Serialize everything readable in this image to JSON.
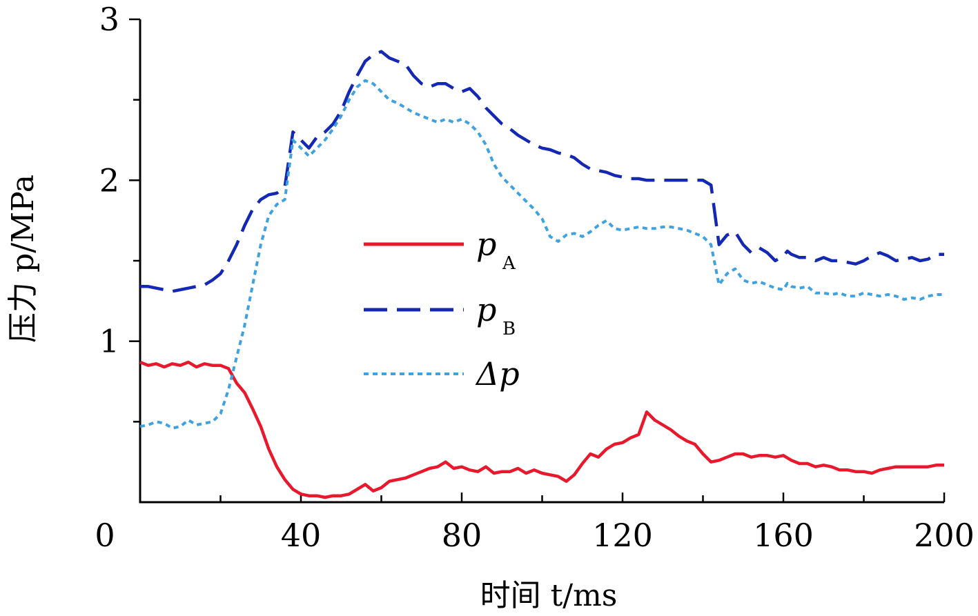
{
  "chart_data": {
    "type": "line",
    "xlabel": "时间 t/ms",
    "ylabel": "压力 p/MPa",
    "xlim": [
      0,
      200
    ],
    "ylim": [
      0,
      3
    ],
    "xticks": [
      0,
      40,
      80,
      120,
      160,
      200
    ],
    "yticks": [
      1,
      2,
      3
    ],
    "grid": false,
    "legend_position": "center",
    "series": [
      {
        "name": "pA",
        "legend_main": "p",
        "legend_sub": "A",
        "color": "#e8192c",
        "style": "solid",
        "x": [
          0,
          2,
          4,
          6,
          8,
          10,
          12,
          14,
          16,
          18,
          20,
          22,
          24,
          26,
          28,
          30,
          32,
          34,
          36,
          38,
          40,
          42,
          44,
          46,
          48,
          50,
          52,
          54,
          56,
          58,
          60,
          62,
          64,
          66,
          68,
          70,
          72,
          74,
          76,
          78,
          80,
          82,
          84,
          86,
          88,
          90,
          92,
          94,
          96,
          98,
          100,
          102,
          104,
          106,
          108,
          110,
          112,
          114,
          116,
          118,
          120,
          122,
          124,
          126,
          128,
          130,
          132,
          134,
          136,
          138,
          140,
          142,
          144,
          146,
          148,
          150,
          152,
          154,
          156,
          158,
          160,
          162,
          164,
          166,
          168,
          170,
          172,
          174,
          176,
          178,
          180,
          182,
          184,
          186,
          188,
          190,
          192,
          194,
          196,
          198,
          200
        ],
        "y": [
          0.87,
          0.85,
          0.86,
          0.84,
          0.86,
          0.85,
          0.87,
          0.84,
          0.86,
          0.85,
          0.85,
          0.83,
          0.74,
          0.68,
          0.58,
          0.47,
          0.33,
          0.22,
          0.14,
          0.08,
          0.05,
          0.04,
          0.04,
          0.03,
          0.04,
          0.04,
          0.05,
          0.08,
          0.11,
          0.07,
          0.09,
          0.13,
          0.14,
          0.15,
          0.17,
          0.19,
          0.21,
          0.22,
          0.25,
          0.21,
          0.22,
          0.2,
          0.19,
          0.22,
          0.18,
          0.19,
          0.19,
          0.21,
          0.18,
          0.2,
          0.18,
          0.17,
          0.16,
          0.13,
          0.17,
          0.24,
          0.3,
          0.28,
          0.33,
          0.36,
          0.37,
          0.4,
          0.42,
          0.56,
          0.51,
          0.48,
          0.45,
          0.41,
          0.38,
          0.36,
          0.3,
          0.25,
          0.26,
          0.28,
          0.3,
          0.3,
          0.28,
          0.29,
          0.29,
          0.28,
          0.29,
          0.26,
          0.24,
          0.24,
          0.22,
          0.23,
          0.22,
          0.2,
          0.2,
          0.19,
          0.19,
          0.18,
          0.2,
          0.21,
          0.22,
          0.22,
          0.22,
          0.22,
          0.22,
          0.23,
          0.23
        ]
      },
      {
        "name": "pB",
        "legend_main": "p",
        "legend_sub": "B",
        "color": "#1428b4",
        "style": "dashed",
        "x": [
          0,
          2,
          4,
          6,
          8,
          10,
          12,
          14,
          16,
          18,
          20,
          22,
          24,
          26,
          28,
          30,
          32,
          34,
          36,
          38,
          40,
          42,
          44,
          46,
          48,
          50,
          52,
          54,
          56,
          58,
          60,
          62,
          64,
          66,
          68,
          70,
          72,
          74,
          76,
          78,
          80,
          82,
          84,
          86,
          88,
          90,
          92,
          94,
          96,
          98,
          100,
          102,
          104,
          106,
          108,
          110,
          112,
          114,
          116,
          118,
          120,
          122,
          124,
          126,
          128,
          130,
          132,
          134,
          136,
          138,
          140,
          142,
          144,
          146,
          148,
          150,
          152,
          154,
          156,
          158,
          160,
          161,
          162,
          164,
          166,
          168,
          170,
          172,
          174,
          176,
          178,
          180,
          182,
          184,
          186,
          188,
          190,
          192,
          194,
          196,
          198,
          200
        ],
        "y": [
          1.34,
          1.34,
          1.33,
          1.32,
          1.31,
          1.32,
          1.33,
          1.34,
          1.35,
          1.38,
          1.42,
          1.5,
          1.6,
          1.72,
          1.82,
          1.88,
          1.91,
          1.92,
          1.96,
          2.3,
          2.25,
          2.2,
          2.27,
          2.3,
          2.35,
          2.43,
          2.55,
          2.65,
          2.74,
          2.78,
          2.8,
          2.76,
          2.74,
          2.72,
          2.65,
          2.6,
          2.58,
          2.6,
          2.6,
          2.57,
          2.55,
          2.57,
          2.52,
          2.45,
          2.4,
          2.35,
          2.32,
          2.28,
          2.25,
          2.22,
          2.2,
          2.19,
          2.17,
          2.16,
          2.14,
          2.1,
          2.07,
          2.06,
          2.05,
          2.03,
          2.02,
          2.01,
          2.01,
          2.0,
          2.0,
          2.0,
          2.0,
          2.0,
          2.0,
          2.0,
          2.0,
          1.97,
          1.6,
          1.66,
          1.68,
          1.6,
          1.55,
          1.58,
          1.55,
          1.5,
          1.53,
          1.56,
          1.54,
          1.52,
          1.52,
          1.5,
          1.52,
          1.5,
          1.5,
          1.49,
          1.48,
          1.5,
          1.53,
          1.55,
          1.53,
          1.5,
          1.51,
          1.52,
          1.5,
          1.51,
          1.54,
          1.54
        ]
      },
      {
        "name": "Δp",
        "legend_main": "Δp",
        "legend_sub": "",
        "color": "#3fa2e0",
        "style": "dotted",
        "x": [
          0,
          2,
          4,
          6,
          8,
          10,
          12,
          14,
          16,
          18,
          20,
          22,
          24,
          26,
          28,
          30,
          32,
          34,
          36,
          38,
          40,
          42,
          44,
          46,
          48,
          50,
          52,
          54,
          56,
          58,
          60,
          62,
          64,
          66,
          68,
          70,
          72,
          74,
          76,
          78,
          80,
          82,
          84,
          86,
          88,
          90,
          92,
          94,
          96,
          98,
          100,
          102,
          104,
          106,
          108,
          110,
          112,
          114,
          116,
          118,
          120,
          122,
          124,
          126,
          128,
          130,
          132,
          134,
          136,
          138,
          140,
          142,
          144,
          146,
          148,
          150,
          152,
          154,
          156,
          158,
          160,
          161,
          162,
          164,
          166,
          168,
          170,
          172,
          174,
          176,
          178,
          180,
          182,
          184,
          186,
          188,
          190,
          192,
          194,
          196,
          198,
          200
        ],
        "y": [
          0.47,
          0.48,
          0.5,
          0.49,
          0.46,
          0.47,
          0.51,
          0.48,
          0.49,
          0.5,
          0.55,
          0.7,
          0.9,
          1.1,
          1.35,
          1.6,
          1.78,
          1.85,
          1.88,
          2.25,
          2.2,
          2.15,
          2.2,
          2.25,
          2.32,
          2.4,
          2.5,
          2.58,
          2.62,
          2.6,
          2.55,
          2.5,
          2.48,
          2.45,
          2.42,
          2.4,
          2.38,
          2.36,
          2.38,
          2.36,
          2.38,
          2.35,
          2.3,
          2.22,
          2.1,
          2.02,
          1.97,
          1.92,
          1.87,
          1.82,
          1.76,
          1.65,
          1.62,
          1.66,
          1.67,
          1.65,
          1.68,
          1.72,
          1.75,
          1.7,
          1.69,
          1.7,
          1.71,
          1.7,
          1.7,
          1.71,
          1.71,
          1.7,
          1.69,
          1.67,
          1.65,
          1.6,
          1.35,
          1.42,
          1.45,
          1.38,
          1.36,
          1.37,
          1.35,
          1.33,
          1.32,
          1.36,
          1.34,
          1.33,
          1.34,
          1.3,
          1.3,
          1.29,
          1.3,
          1.28,
          1.28,
          1.3,
          1.29,
          1.28,
          1.29,
          1.28,
          1.26,
          1.27,
          1.26,
          1.28,
          1.29,
          1.29
        ]
      }
    ]
  }
}
